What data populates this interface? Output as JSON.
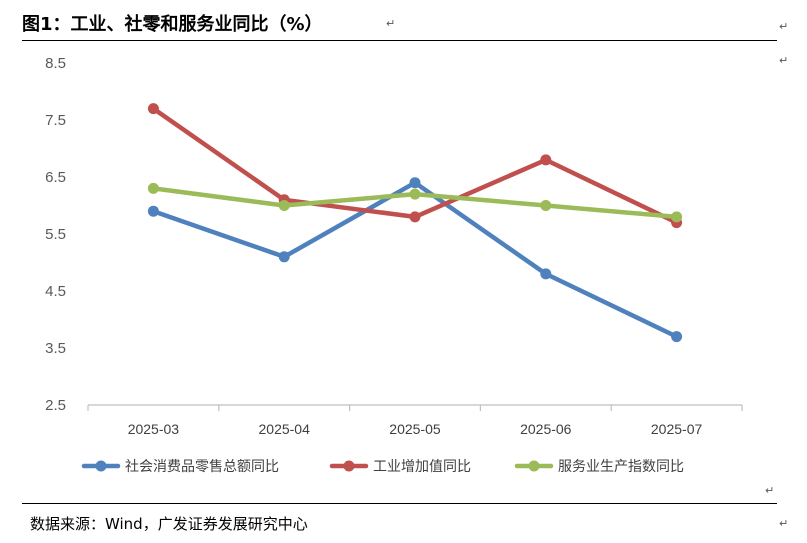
{
  "title": "图1：工业、社零和服务业同比（%）",
  "source": "数据来源：Wind，广发证券发展研究中心",
  "chart_data": {
    "type": "line",
    "categories": [
      "2025-03",
      "2025-04",
      "2025-05",
      "2025-06",
      "2025-07"
    ],
    "series": [
      {
        "name": "社会消费品零售总额同比",
        "color": "#4F81BD",
        "values": [
          5.9,
          5.1,
          6.4,
          4.8,
          3.7
        ]
      },
      {
        "name": "工业增加值同比",
        "color": "#C0504D",
        "values": [
          7.7,
          6.1,
          5.8,
          6.8,
          5.7
        ]
      },
      {
        "name": "服务业生产指数同比",
        "color": "#9BBB59",
        "values": [
          6.3,
          6.0,
          6.2,
          6.0,
          5.8
        ]
      }
    ],
    "yticks": [
      "8.5",
      "7.5",
      "6.5",
      "5.5",
      "4.5",
      "3.5",
      "2.5"
    ],
    "ylim": [
      2.5,
      8.5
    ],
    "grid": false,
    "legend_position": "bottom"
  }
}
